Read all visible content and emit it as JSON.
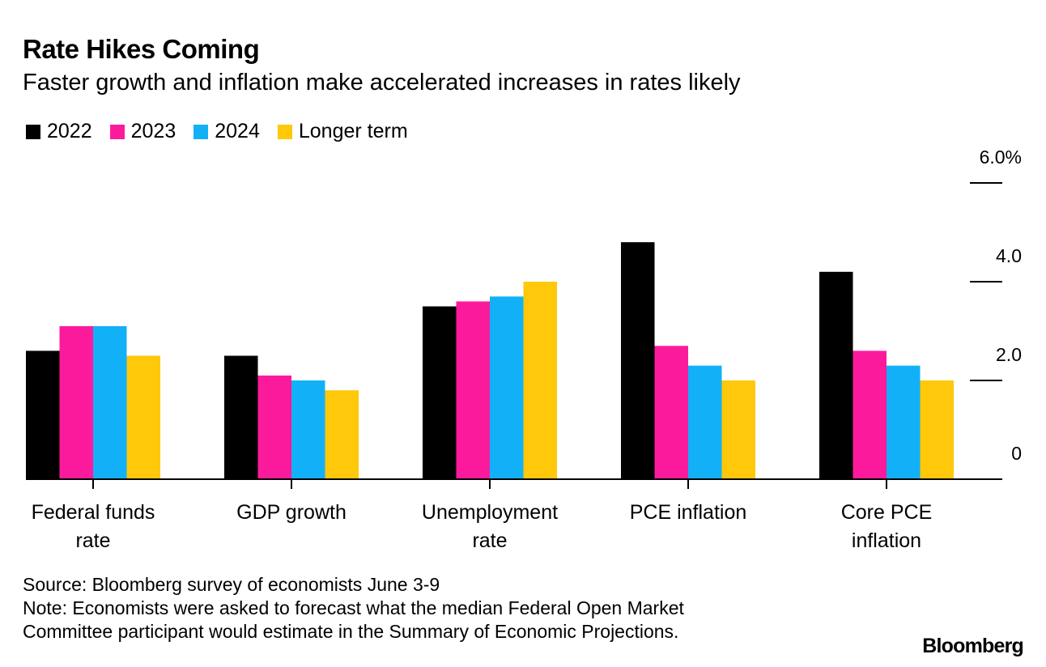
{
  "title": "Rate Hikes Coming",
  "subtitle": "Faster growth and inflation make accelerated increases in rates likely",
  "chart_data": {
    "type": "bar",
    "categories": [
      [
        "Federal funds",
        "rate"
      ],
      [
        "GDP growth"
      ],
      [
        "Unemployment",
        "rate"
      ],
      [
        "PCE inflation"
      ],
      [
        "Core PCE",
        "inflation"
      ]
    ],
    "series": [
      {
        "name": "2022",
        "color": "#000000",
        "values": [
          2.6,
          2.5,
          3.5,
          4.8,
          4.2
        ]
      },
      {
        "name": "2023",
        "color": "#fc1a9c",
        "values": [
          3.1,
          2.1,
          3.6,
          2.7,
          2.6
        ]
      },
      {
        "name": "2024",
        "color": "#12b1f7",
        "values": [
          3.1,
          2.0,
          3.7,
          2.3,
          2.3
        ]
      },
      {
        "name": "Longer term",
        "color": "#ffc80a",
        "values": [
          2.5,
          1.8,
          4.0,
          2.0,
          2.0
        ]
      }
    ],
    "y_ticks": [
      {
        "value": 0,
        "label": "0"
      },
      {
        "value": 2,
        "label": "2.0"
      },
      {
        "value": 4,
        "label": "4.0"
      },
      {
        "value": 6,
        "label": "6.0%"
      }
    ],
    "ylim": [
      0,
      6
    ],
    "axis_side": "right",
    "legend_position": "top-left",
    "grid": false
  },
  "footer": {
    "source": "Source: Bloomberg survey of economists June 3-9",
    "note_line1": "Note: Economists were asked to forecast what the median Federal Open Market",
    "note_line2": "Committee participant would estimate in the Summary of Economic Projections."
  },
  "logo": "Bloomberg"
}
